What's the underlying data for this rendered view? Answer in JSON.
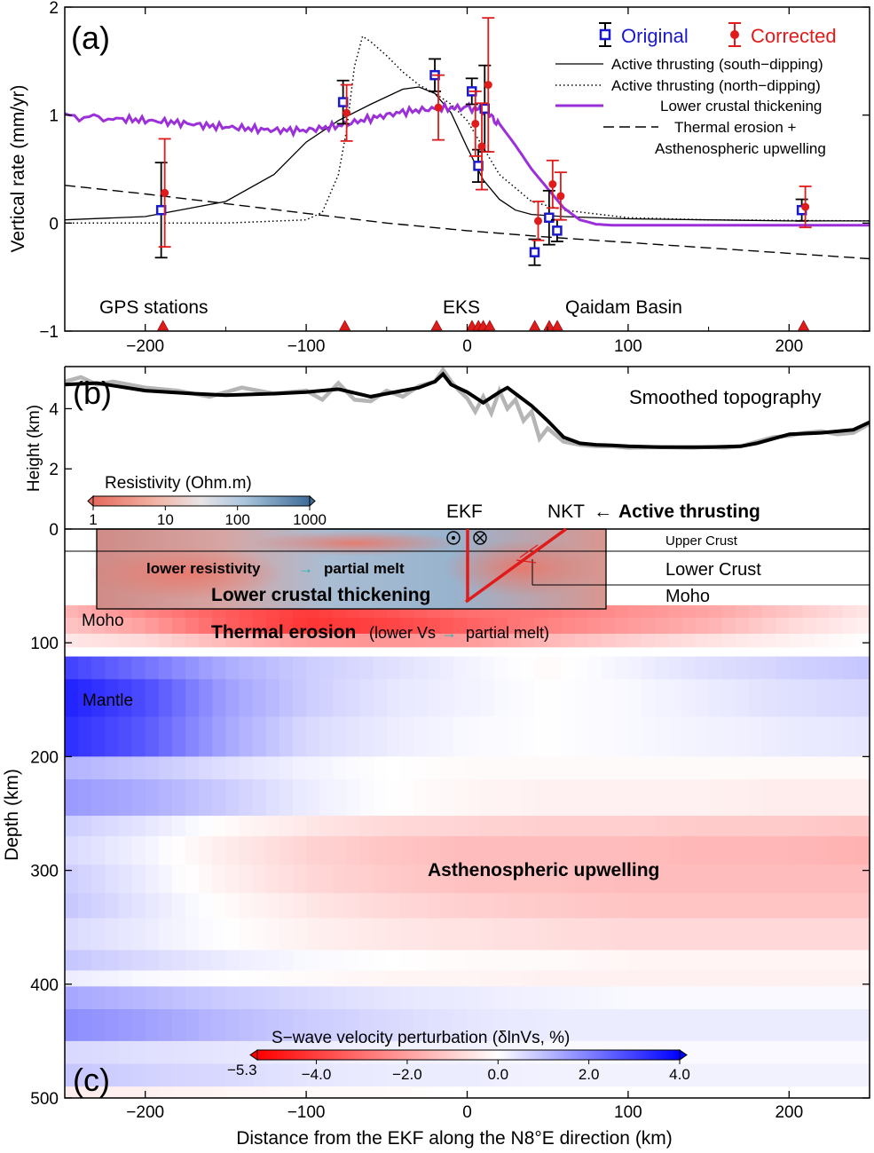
{
  "x_axis": {
    "label": "Distance from the EKF along the N8°E direction (km)",
    "range": [
      -250,
      250
    ],
    "ticks": [
      -200,
      -100,
      0,
      100,
      200
    ],
    "tick_labels": [
      "−200",
      "−100",
      "0",
      "100",
      "200"
    ]
  },
  "panel_a": {
    "letter": "(a)",
    "ylabel": "Vertical rate (mm/yr)",
    "ylim": [
      -1,
      2
    ],
    "yticks": [
      -1,
      0,
      1,
      2
    ],
    "ytick_labels": [
      "−1",
      "0",
      "1",
      "2"
    ],
    "legend": {
      "original": "Original",
      "corrected": "Corrected",
      "south": "Active thrusting (south−dipping)",
      "north": "Active thrusting (north−dipping)",
      "lower": "Lower crustal thickening",
      "thermal_1": "Thermal erosion +",
      "thermal_2": "Asthenospheric upwelling"
    },
    "annotations": {
      "gps": "GPS stations",
      "eks": "EKS",
      "qaidam": "Qaidam Basin"
    }
  },
  "panel_b": {
    "letter": "(b)",
    "ylabel": "Height (km)",
    "yticks": [
      2,
      4
    ],
    "title": "Smoothed topography"
  },
  "panel_c": {
    "letter": "(c)",
    "ylabel": "Depth (km)",
    "yticks": [
      0,
      100,
      200,
      300,
      400,
      500
    ],
    "resistivity_title": "Resistivity (Ohm.m)",
    "resistivity_ticks": [
      "1",
      "10",
      "100",
      "1000"
    ],
    "ekf": "EKF",
    "nkt": "NKT",
    "active_arrow": "←",
    "active": "Active thrusting",
    "upper_crust": "Upper Crust",
    "lower_crust": "Lower Crust",
    "moho_right": "Moho",
    "moho_left": "Moho",
    "mantle": "Mantle",
    "lr_1": "lower resistivity",
    "lr_arrow": "→",
    "lr_2": "partial melt",
    "lct": "Lower crustal thickening",
    "te_bold": "Thermal erosion",
    "te_open": "(lower Vs",
    "te_arrow": "→",
    "te_close": "partial melt)",
    "upwelling": "Asthenospheric upwelling",
    "vs_title": "S−wave velocity perturbation (δlnVs, %)",
    "vs_min": "−5.3",
    "vs_ticks": [
      "−4.0",
      "−2.0",
      "0.0",
      "2.0",
      "4.0"
    ]
  },
  "colors": {
    "original": "#1a1acc",
    "corrected": "#e01b1b",
    "lower_crustal": "#9b30d9",
    "gps_marker": "#dd1c1c",
    "topo_raw": "#b5b5b5",
    "topo_smooth": "#000000"
  },
  "chart_data": [
    {
      "type": "scatter",
      "title": "",
      "xlabel": "",
      "ylabel": "Vertical rate (mm/yr)",
      "xlim": [
        -250,
        250
      ],
      "ylim": [
        -1,
        2
      ],
      "grid": false,
      "legend_position": "top-right",
      "series": [
        {
          "name": "Original",
          "x": [
            -189,
            -76,
            -19,
            4,
            8,
            12,
            43,
            52,
            57,
            209
          ],
          "y": [
            0.12,
            1.12,
            1.37,
            1.22,
            0.53,
            1.06,
            -0.27,
            0.05,
            -0.07,
            0.12
          ],
          "err": [
            0.44,
            0.2,
            0.15,
            0.12,
            0.15,
            0.4,
            0.12,
            0.25,
            0.1,
            0.1
          ]
        },
        {
          "name": "Corrected",
          "x": [
            -189,
            -76,
            -19,
            4,
            8,
            12,
            43,
            52,
            57,
            209
          ],
          "y": [
            0.28,
            1.02,
            1.07,
            0.92,
            0.71,
            1.28,
            0.02,
            0.36,
            0.25,
            0.15
          ],
          "err": [
            0.5,
            0.26,
            0.3,
            0.3,
            0.4,
            0.62,
            0.18,
            0.22,
            0.22,
            0.19
          ]
        },
        {
          "name": "Active thrusting (south−dipping)",
          "x": [
            -250,
            -200,
            -150,
            -120,
            -100,
            -80,
            -60,
            -40,
            -30,
            -20,
            -10,
            0,
            10,
            20,
            30,
            40,
            60,
            100,
            150,
            200,
            250
          ],
          "y": [
            0.03,
            0.06,
            0.2,
            0.45,
            0.75,
            0.95,
            1.1,
            1.24,
            1.26,
            1.2,
            1.02,
            0.7,
            0.4,
            0.22,
            0.12,
            0.08,
            0.06,
            0.04,
            0.03,
            0.02,
            0.02
          ]
        },
        {
          "name": "Active thrusting (north−dipping)",
          "x": [
            -250,
            -150,
            -100,
            -90,
            -80,
            -75,
            -70,
            -65,
            -60,
            -50,
            -40,
            -30,
            -20,
            -10,
            0,
            10,
            20,
            40,
            60,
            100,
            150,
            250
          ],
          "y": [
            0.0,
            0.0,
            0.03,
            0.1,
            0.45,
            0.85,
            1.45,
            1.73,
            1.68,
            1.55,
            1.4,
            1.28,
            1.2,
            1.1,
            0.95,
            0.7,
            0.45,
            0.2,
            0.12,
            0.05,
            0.03,
            0.02
          ]
        },
        {
          "name": "Lower crustal thickening",
          "x": [
            -250,
            -220,
            -200,
            -180,
            -160,
            -140,
            -120,
            -100,
            -80,
            -60,
            -40,
            -20,
            0,
            10,
            20,
            30,
            40,
            50,
            60,
            70,
            80,
            90,
            100,
            150,
            200,
            250
          ],
          "y": [
            0.99,
            0.97,
            0.95,
            0.93,
            0.9,
            0.88,
            0.86,
            0.86,
            0.9,
            0.97,
            1.03,
            1.06,
            1.07,
            1.05,
            0.92,
            0.72,
            0.5,
            0.32,
            0.14,
            0.03,
            -0.01,
            -0.02,
            -0.02,
            -0.02,
            -0.02,
            -0.02
          ]
        },
        {
          "name": "Thermal erosion + Asthenospheric upwelling",
          "x": [
            -250,
            -200,
            -150,
            -100,
            -50,
            0,
            50,
            100,
            150,
            200,
            250
          ],
          "y": [
            0.35,
            0.27,
            0.18,
            0.09,
            0.0,
            -0.07,
            -0.13,
            -0.18,
            -0.23,
            -0.28,
            -0.33
          ]
        }
      ],
      "gps_stations_x": [
        -189,
        -76,
        -19,
        3,
        7,
        10,
        14,
        42,
        51,
        56,
        209
      ]
    },
    {
      "type": "line",
      "title": "Smoothed topography",
      "ylabel": "Height (km)",
      "xlim": [
        -250,
        250
      ],
      "ylim": [
        0,
        5.4
      ],
      "series": [
        {
          "name": "Smoothed topography",
          "x": [
            -250,
            -230,
            -200,
            -170,
            -150,
            -120,
            -100,
            -80,
            -60,
            -40,
            -30,
            -20,
            -15,
            -10,
            0,
            10,
            20,
            25,
            30,
            40,
            50,
            60,
            70,
            80,
            90,
            100,
            120,
            150,
            170,
            180,
            190,
            200,
            220,
            240,
            250
          ],
          "y": [
            4.8,
            4.85,
            4.6,
            4.5,
            4.45,
            4.5,
            4.55,
            4.65,
            4.4,
            4.6,
            4.7,
            4.9,
            5.15,
            4.8,
            4.55,
            4.2,
            4.55,
            4.7,
            4.5,
            4.1,
            3.6,
            3.05,
            2.85,
            2.8,
            2.78,
            2.75,
            2.72,
            2.72,
            2.75,
            2.85,
            3.0,
            3.15,
            3.2,
            3.3,
            3.55
          ]
        },
        {
          "name": "",
          "x": [
            -250,
            -240,
            -230,
            -220,
            -200,
            -180,
            -160,
            -140,
            -120,
            -100,
            -90,
            -80,
            -70,
            -60,
            -50,
            -40,
            -30,
            -20,
            -15,
            -10,
            -5,
            0,
            5,
            10,
            15,
            20,
            25,
            30,
            35,
            40,
            45,
            50,
            60,
            70,
            80,
            90,
            100,
            120,
            140,
            150,
            160,
            170,
            180,
            190,
            200,
            210,
            220,
            230,
            240,
            250
          ],
          "y": [
            4.9,
            5.05,
            4.8,
            4.9,
            4.7,
            4.6,
            4.4,
            4.7,
            4.5,
            4.6,
            4.3,
            4.85,
            4.3,
            4.25,
            4.6,
            4.4,
            4.75,
            4.9,
            5.3,
            4.9,
            4.6,
            4.35,
            3.9,
            4.4,
            3.85,
            4.6,
            4.0,
            4.3,
            3.6,
            3.9,
            3.0,
            3.35,
            2.9,
            2.8,
            2.75,
            2.75,
            2.7,
            2.72,
            2.7,
            2.73,
            2.7,
            2.75,
            2.9,
            3.05,
            3.1,
            3.2,
            3.25,
            3.15,
            3.2,
            3.5
          ]
        }
      ]
    },
    {
      "type": "heatmap",
      "title": "",
      "ylabel": "Depth (km)",
      "xlim": [
        -250,
        250
      ],
      "ylim": [
        500,
        0
      ],
      "colorbar_min": -5.3,
      "colorbar_max": 4.0,
      "layers": [
        {
          "from": 67,
          "to": 78,
          "v": [
            -1.5,
            -2.5,
            -3.4,
            -4.1,
            -3.6,
            -3.0,
            -2.8,
            -2.3,
            -1.9,
            -1.2,
            -0.5
          ]
        },
        {
          "from": 78,
          "to": 92,
          "v": [
            -1.2,
            -2.0,
            -3.3,
            -4.2,
            -3.9,
            -3.3,
            -2.6,
            -2.1,
            -1.6,
            -0.8,
            -0.3
          ]
        },
        {
          "from": 92,
          "to": 104,
          "v": [
            -0.5,
            -0.8,
            -1.5,
            -2.1,
            -2.2,
            -2.1,
            -1.5,
            -1.0,
            -0.6,
            -0.3,
            0.0
          ]
        },
        {
          "from": 104,
          "to": 112,
          "v": [
            0.0,
            0.0,
            0.0,
            0.0,
            0.0,
            0.0,
            0.0,
            0.0,
            0.0,
            0.0,
            0.0
          ]
        },
        {
          "from": 112,
          "to": 132,
          "v": [
            3.0,
            2.2,
            1.3,
            0.8,
            0.5,
            0.2,
            -0.1,
            0.2,
            0.5,
            0.7,
            0.9
          ]
        },
        {
          "from": 132,
          "to": 165,
          "v": [
            3.5,
            2.8,
            1.5,
            0.8,
            0.4,
            0.2,
            0.0,
            0.1,
            0.3,
            0.5,
            0.6
          ]
        },
        {
          "from": 165,
          "to": 200,
          "v": [
            3.3,
            2.6,
            1.4,
            0.6,
            0.3,
            0.1,
            0.0,
            0.1,
            0.2,
            0.3,
            0.4
          ]
        },
        {
          "from": 200,
          "to": 220,
          "v": [
            1.2,
            0.9,
            0.5,
            0.2,
            0.0,
            -0.1,
            -0.1,
            -0.1,
            -0.1,
            -0.1,
            -0.1
          ]
        },
        {
          "from": 220,
          "to": 252,
          "v": [
            1.6,
            1.3,
            0.8,
            0.3,
            0.0,
            -0.2,
            -0.3,
            -0.3,
            -0.3,
            -0.4,
            -0.4
          ]
        },
        {
          "from": 252,
          "to": 270,
          "v": [
            0.8,
            0.4,
            -0.1,
            -0.5,
            -0.8,
            -0.9,
            -1.0,
            -1.0,
            -1.1,
            -1.1,
            -1.2
          ]
        },
        {
          "from": 270,
          "to": 295,
          "v": [
            0.6,
            0.2,
            -0.4,
            -0.9,
            -1.2,
            -1.4,
            -1.4,
            -1.4,
            -1.5,
            -1.5,
            -1.6
          ]
        },
        {
          "from": 295,
          "to": 320,
          "v": [
            0.8,
            0.3,
            -0.3,
            -0.8,
            -1.1,
            -1.3,
            -1.3,
            -1.4,
            -1.4,
            -1.4,
            -1.4
          ]
        },
        {
          "from": 320,
          "to": 342,
          "v": [
            0.9,
            0.4,
            -0.1,
            -0.5,
            -0.8,
            -1.0,
            -1.1,
            -1.2,
            -1.2,
            -1.2,
            -1.2
          ]
        },
        {
          "from": 342,
          "to": 370,
          "v": [
            0.6,
            0.3,
            0.0,
            -0.3,
            -0.5,
            -0.6,
            -0.7,
            -0.8,
            -0.8,
            -0.8,
            -0.8
          ]
        },
        {
          "from": 370,
          "to": 388,
          "v": [
            0.9,
            0.6,
            0.3,
            0.1,
            0.0,
            -0.1,
            -0.1,
            -0.2,
            -0.2,
            -0.2,
            -0.2
          ]
        },
        {
          "from": 388,
          "to": 402,
          "v": [
            0.3,
            0.1,
            0.0,
            -0.1,
            -0.2,
            -0.2,
            -0.3,
            -0.3,
            -0.3,
            -0.3,
            -0.3
          ]
        },
        {
          "from": 402,
          "to": 422,
          "v": [
            1.4,
            1.1,
            0.8,
            0.6,
            0.4,
            0.3,
            0.2,
            0.1,
            0.1,
            0.1,
            0.1
          ]
        },
        {
          "from": 422,
          "to": 450,
          "v": [
            1.8,
            1.5,
            1.1,
            0.8,
            0.6,
            0.4,
            0.3,
            0.3,
            0.3,
            0.3,
            0.3
          ]
        },
        {
          "from": 450,
          "to": 470,
          "v": [
            0.6,
            0.5,
            0.4,
            0.3,
            0.2,
            0.2,
            0.1,
            0.1,
            0.1,
            0.1,
            0.1
          ]
        },
        {
          "from": 470,
          "to": 490,
          "v": [
            0.9,
            0.7,
            0.6,
            0.4,
            0.3,
            0.3,
            0.2,
            0.2,
            0.2,
            0.2,
            0.2
          ]
        },
        {
          "from": 490,
          "to": 500,
          "v": [
            -0.4,
            -0.3,
            -0.2,
            -0.1,
            -0.1,
            0.0,
            0.0,
            0.0,
            0.0,
            0.0,
            0.0
          ]
        }
      ]
    }
  ]
}
